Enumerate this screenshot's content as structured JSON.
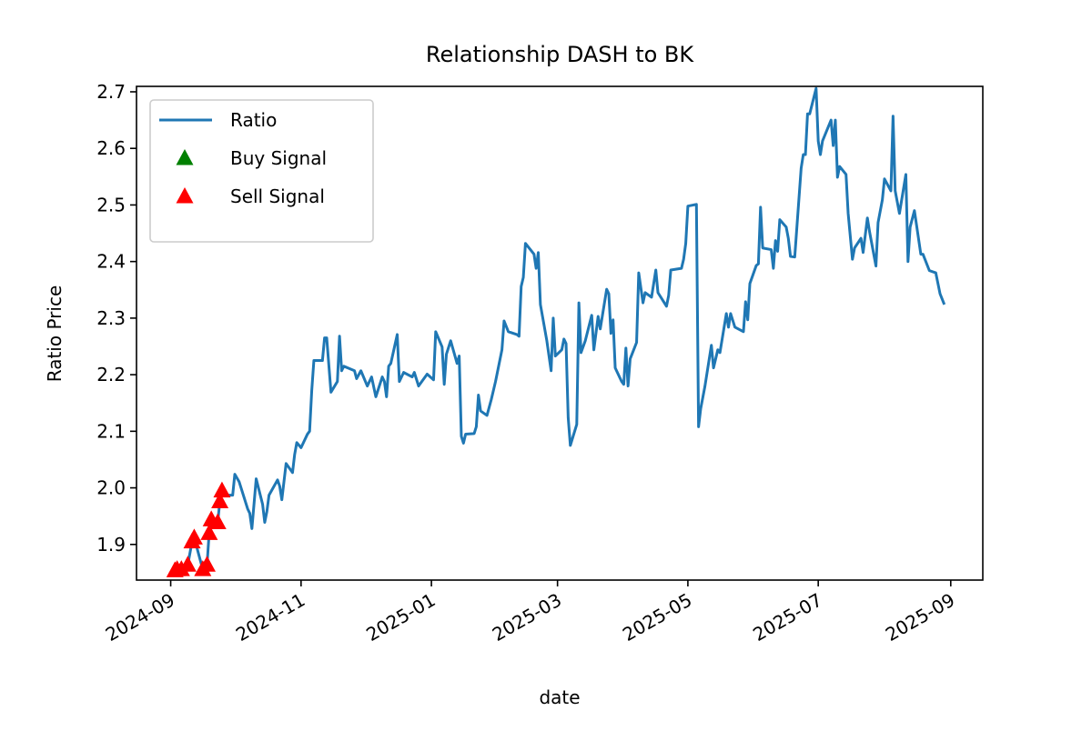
{
  "chart_data": {
    "type": "line",
    "title": "Relationship DASH to BK",
    "xlabel": "date",
    "ylabel": "Ratio Price",
    "xlim": [
      "2024-08-16",
      "2025-09-16"
    ],
    "ylim": [
      1.837,
      2.7096
    ],
    "xticks": [
      {
        "value": "2024-09-01",
        "label": "2024-09"
      },
      {
        "value": "2024-11-01",
        "label": "2024-11"
      },
      {
        "value": "2025-01-01",
        "label": "2025-01"
      },
      {
        "value": "2025-03-01",
        "label": "2025-03"
      },
      {
        "value": "2025-05-01",
        "label": "2025-05"
      },
      {
        "value": "2025-07-01",
        "label": "2025-07"
      },
      {
        "value": "2025-09-01",
        "label": "2025-09"
      }
    ],
    "yticks": [
      1.9,
      2.0,
      2.1,
      2.2,
      2.3,
      2.4,
      2.5,
      2.6,
      2.7
    ],
    "ytick_labels": [
      "1.9",
      "2.0",
      "2.1",
      "2.2",
      "2.3",
      "2.4",
      "2.5",
      "2.6",
      "2.7"
    ],
    "legend": "upper left",
    "grid": false,
    "series": [
      {
        "name": "Ratio",
        "color": "#1f77b4",
        "marker": "line",
        "x": [
          "2024-09-03",
          "2024-09-04",
          "2024-09-06",
          "2024-09-09",
          "2024-09-11",
          "2024-09-12",
          "2024-09-16",
          "2024-09-18",
          "2024-09-19",
          "2024-09-20",
          "2024-09-23",
          "2024-09-24",
          "2024-09-25",
          "2024-09-27",
          "2024-09-30",
          "2024-10-01",
          "2024-10-03",
          "2024-10-07",
          "2024-10-08",
          "2024-10-09",
          "2024-10-11",
          "2024-10-14",
          "2024-10-15",
          "2024-10-16",
          "2024-10-17",
          "2024-10-21",
          "2024-10-22",
          "2024-10-23",
          "2024-10-25",
          "2024-10-28",
          "2024-10-29",
          "2024-10-30",
          "2024-11-01",
          "2024-11-04",
          "2024-11-05",
          "2024-11-06",
          "2024-11-07",
          "2024-11-11",
          "2024-11-12",
          "2024-11-13",
          "2024-11-15",
          "2024-11-18",
          "2024-11-19",
          "2024-11-20",
          "2024-11-21",
          "2024-11-26",
          "2024-11-27",
          "2024-11-29",
          "2024-12-02",
          "2024-12-04",
          "2024-12-06",
          "2024-12-09",
          "2024-12-10",
          "2024-12-11",
          "2024-12-12",
          "2024-12-13",
          "2024-12-16",
          "2024-12-17",
          "2024-12-19",
          "2024-12-23",
          "2024-12-24",
          "2024-12-26",
          "2024-12-30",
          "2025-01-02",
          "2025-01-03",
          "2025-01-06",
          "2025-01-07",
          "2025-01-08",
          "2025-01-10",
          "2025-01-13",
          "2025-01-14",
          "2025-01-15",
          "2025-01-16",
          "2025-01-17",
          "2025-01-21",
          "2025-01-22",
          "2025-01-23",
          "2025-01-24",
          "2025-01-27",
          "2025-01-29",
          "2025-01-31",
          "2025-02-03",
          "2025-02-04",
          "2025-02-06",
          "2025-02-10",
          "2025-02-11",
          "2025-02-12",
          "2025-02-13",
          "2025-02-14",
          "2025-02-18",
          "2025-02-19",
          "2025-02-20",
          "2025-02-21",
          "2025-02-24",
          "2025-02-26",
          "2025-02-27",
          "2025-02-28",
          "2025-03-03",
          "2025-03-04",
          "2025-03-05",
          "2025-03-06",
          "2025-03-07",
          "2025-03-10",
          "2025-03-11",
          "2025-03-12",
          "2025-03-14",
          "2025-03-17",
          "2025-03-18",
          "2025-03-20",
          "2025-03-21",
          "2025-03-24",
          "2025-03-25",
          "2025-03-26",
          "2025-03-27",
          "2025-03-28",
          "2025-03-31",
          "2025-04-01",
          "2025-04-02",
          "2025-04-03",
          "2025-04-04",
          "2025-04-07",
          "2025-04-08",
          "2025-04-10",
          "2025-04-11",
          "2025-04-14",
          "2025-04-16",
          "2025-04-17",
          "2025-04-21",
          "2025-04-22",
          "2025-04-23",
          "2025-04-28",
          "2025-04-29",
          "2025-04-30",
          "2025-05-01",
          "2025-05-05",
          "2025-05-06",
          "2025-05-07",
          "2025-05-09",
          "2025-05-12",
          "2025-05-13",
          "2025-05-15",
          "2025-05-16",
          "2025-05-19",
          "2025-05-20",
          "2025-05-21",
          "2025-05-23",
          "2025-05-27",
          "2025-05-28",
          "2025-05-29",
          "2025-05-30",
          "2025-06-02",
          "2025-06-03",
          "2025-06-04",
          "2025-06-05",
          "2025-06-09",
          "2025-06-10",
          "2025-06-11",
          "2025-06-12",
          "2025-06-13",
          "2025-06-16",
          "2025-06-17",
          "2025-06-18",
          "2025-06-20",
          "2025-06-23",
          "2025-06-24",
          "2025-06-25",
          "2025-06-26",
          "2025-06-27",
          "2025-06-30",
          "2025-07-01",
          "2025-07-02",
          "2025-07-03",
          "2025-07-07",
          "2025-07-08",
          "2025-07-09",
          "2025-07-10",
          "2025-07-11",
          "2025-07-14",
          "2025-07-15",
          "2025-07-17",
          "2025-07-18",
          "2025-07-21",
          "2025-07-22",
          "2025-07-24",
          "2025-07-25",
          "2025-07-28",
          "2025-07-29",
          "2025-07-31",
          "2025-08-01",
          "2025-08-04",
          "2025-08-05",
          "2025-08-06",
          "2025-08-08",
          "2025-08-11",
          "2025-08-12",
          "2025-08-13",
          "2025-08-15",
          "2025-08-18",
          "2025-08-19",
          "2025-08-22",
          "2025-08-25",
          "2025-08-27",
          "2025-08-29"
        ],
        "values": [
          1.854,
          1.856,
          1.856,
          1.864,
          1.905,
          1.912,
          1.856,
          1.864,
          1.92,
          1.944,
          1.939,
          1.976,
          1.995,
          1.987,
          1.987,
          2.024,
          2.011,
          1.963,
          1.955,
          1.928,
          2.016,
          1.971,
          1.939,
          1.958,
          1.987,
          2.014,
          2.003,
          1.979,
          2.043,
          2.027,
          2.059,
          2.08,
          2.071,
          2.095,
          2.1,
          2.172,
          2.225,
          2.225,
          2.265,
          2.265,
          2.169,
          2.188,
          2.268,
          2.207,
          2.215,
          2.207,
          2.193,
          2.207,
          2.18,
          2.196,
          2.161,
          2.196,
          2.188,
          2.161,
          2.215,
          2.22,
          2.271,
          2.188,
          2.204,
          2.196,
          2.204,
          2.18,
          2.201,
          2.191,
          2.276,
          2.249,
          2.183,
          2.236,
          2.26,
          2.22,
          2.233,
          2.091,
          2.079,
          2.095,
          2.096,
          2.108,
          2.164,
          2.136,
          2.128,
          2.156,
          2.188,
          2.244,
          2.295,
          2.276,
          2.271,
          2.268,
          2.356,
          2.372,
          2.432,
          2.413,
          2.388,
          2.416,
          2.324,
          2.26,
          2.207,
          2.3,
          2.233,
          2.244,
          2.263,
          2.255,
          2.124,
          2.075,
          2.112,
          2.327,
          2.239,
          2.26,
          2.305,
          2.244,
          2.303,
          2.281,
          2.351,
          2.343,
          2.273,
          2.297,
          2.212,
          2.188,
          2.183,
          2.247,
          2.18,
          2.228,
          2.257,
          2.38,
          2.327,
          2.345,
          2.337,
          2.385,
          2.345,
          2.321,
          2.34,
          2.385,
          2.388,
          2.404,
          2.432,
          2.498,
          2.501,
          2.108,
          2.14,
          2.18,
          2.252,
          2.212,
          2.244,
          2.239,
          2.308,
          2.284,
          2.308,
          2.284,
          2.276,
          2.329,
          2.297,
          2.361,
          2.393,
          2.396,
          2.496,
          2.424,
          2.421,
          2.388,
          2.437,
          2.418,
          2.474,
          2.461,
          2.441,
          2.409,
          2.408,
          2.565,
          2.589,
          2.589,
          2.661,
          2.661,
          2.706,
          2.613,
          2.589,
          2.613,
          2.65,
          2.605,
          2.65,
          2.549,
          2.568,
          2.554,
          2.485,
          2.404,
          2.424,
          2.441,
          2.416,
          2.477,
          2.453,
          2.392,
          2.469,
          2.509,
          2.546,
          2.525,
          2.657,
          2.525,
          2.485,
          2.554,
          2.4,
          2.461,
          2.49,
          2.413,
          2.413,
          2.384,
          2.38,
          2.343,
          2.324
        ]
      },
      {
        "name": "Buy Signal",
        "color": "green",
        "marker": "triangle",
        "x": [],
        "values": []
      },
      {
        "name": "Sell Signal",
        "color": "red",
        "marker": "triangle",
        "x": [
          "2024-09-03",
          "2024-09-04",
          "2024-09-06",
          "2024-09-09",
          "2024-09-11",
          "2024-09-12",
          "2024-09-16",
          "2024-09-18",
          "2024-09-19",
          "2024-09-20",
          "2024-09-23",
          "2024-09-24",
          "2024-09-25"
        ],
        "values": [
          1.854,
          1.856,
          1.856,
          1.864,
          1.905,
          1.912,
          1.856,
          1.864,
          1.92,
          1.944,
          1.939,
          1.976,
          1.995
        ]
      }
    ]
  }
}
